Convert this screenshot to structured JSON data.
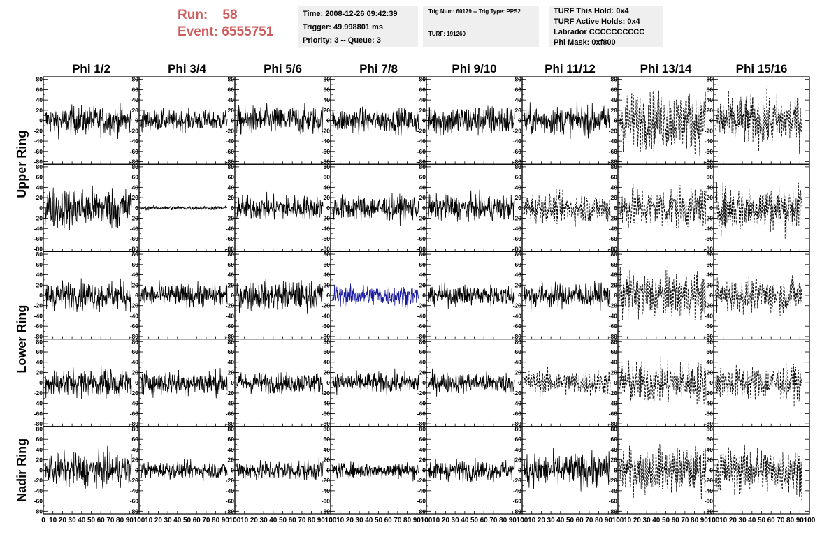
{
  "header": {
    "run_label": "Run:    58",
    "event_label": "Event: 6555751"
  },
  "info_time": {
    "time": "Time: 2008-12-26 09:42:39",
    "trigger": "Trigger: 49.998801 ms",
    "priority": "Priority: 3 -- Queue: 3"
  },
  "info_trig": {
    "trig": "Trig Num: 60179 -- Trig Type: PPS2",
    "turf": "TURF: 191260"
  },
  "info_turf": {
    "hold": "TURF This Hold: 0x4",
    "active": "TURF Active Holds: 0x4",
    "labrador": "Labrador CCCCCCCCCC",
    "phimask": "Phi Mask: 0xf800"
  },
  "colors": {
    "title_red": "#cd5c5c",
    "box_bg": "#efefef",
    "trace": "#000000",
    "highlight_trace": "#1a1a9c"
  },
  "chart_data": {
    "type": "line",
    "columns": [
      "Phi 1/2",
      "Phi 3/4",
      "Phi 5/6",
      "Phi 7/8",
      "Phi 9/10",
      "Phi 11/12",
      "Phi 13/14",
      "Phi 15/16"
    ],
    "ring_labels": [
      "Upper Ring",
      "Lower Ring",
      "Nadir Ring"
    ],
    "rows": 5,
    "ylim": [
      -85,
      85
    ],
    "yticks": [
      -80,
      -60,
      -40,
      -20,
      0,
      20,
      40,
      60,
      80
    ],
    "xlim": [
      0,
      100
    ],
    "xticks": [
      0,
      10,
      20,
      30,
      40,
      50,
      60,
      70,
      80,
      90,
      100
    ],
    "xtick_labels": [
      "0",
      "10",
      "20",
      "30",
      "40",
      "50",
      "60",
      "70",
      "80",
      "90",
      "100"
    ],
    "highlight_panel": {
      "row": 2,
      "col": 3
    },
    "panels": [
      [
        {
          "amp": 14,
          "style": "solid"
        },
        {
          "amp": 10,
          "style": "solid"
        },
        {
          "amp": 14,
          "style": "solid"
        },
        {
          "amp": 12,
          "style": "solid"
        },
        {
          "amp": 15,
          "style": "solid"
        },
        {
          "amp": 14,
          "style": "solid"
        },
        {
          "amp": 28,
          "style": "dashed"
        },
        {
          "amp": 24,
          "style": "dashed"
        }
      ],
      [
        {
          "amp": 20,
          "style": "solid"
        },
        {
          "amp": 2,
          "style": "solid"
        },
        {
          "amp": 12,
          "style": "solid"
        },
        {
          "amp": 12,
          "style": "solid"
        },
        {
          "amp": 12,
          "style": "solid"
        },
        {
          "amp": 14,
          "style": "dashed"
        },
        {
          "amp": 20,
          "style": "dashed"
        },
        {
          "amp": 22,
          "style": "dashed"
        }
      ],
      [
        {
          "amp": 14,
          "style": "solid"
        },
        {
          "amp": 11,
          "style": "solid"
        },
        {
          "amp": 14,
          "style": "solid"
        },
        {
          "amp": 10,
          "style": "solid"
        },
        {
          "amp": 10,
          "style": "solid"
        },
        {
          "amp": 12,
          "style": "solid"
        },
        {
          "amp": 22,
          "style": "dashed"
        },
        {
          "amp": 16,
          "style": "dashed"
        }
      ],
      [
        {
          "amp": 14,
          "style": "solid"
        },
        {
          "amp": 12,
          "style": "solid"
        },
        {
          "amp": 10,
          "style": "solid"
        },
        {
          "amp": 10,
          "style": "solid"
        },
        {
          "amp": 10,
          "style": "solid"
        },
        {
          "amp": 12,
          "style": "dashed"
        },
        {
          "amp": 20,
          "style": "dashed"
        },
        {
          "amp": 16,
          "style": "dashed"
        }
      ],
      [
        {
          "amp": 16,
          "style": "solid"
        },
        {
          "amp": 8,
          "style": "solid"
        },
        {
          "amp": 10,
          "style": "solid"
        },
        {
          "amp": 8,
          "style": "solid"
        },
        {
          "amp": 10,
          "style": "solid"
        },
        {
          "amp": 16,
          "style": "solid"
        },
        {
          "amp": 22,
          "style": "dashed"
        },
        {
          "amp": 22,
          "style": "dashed"
        }
      ]
    ]
  }
}
